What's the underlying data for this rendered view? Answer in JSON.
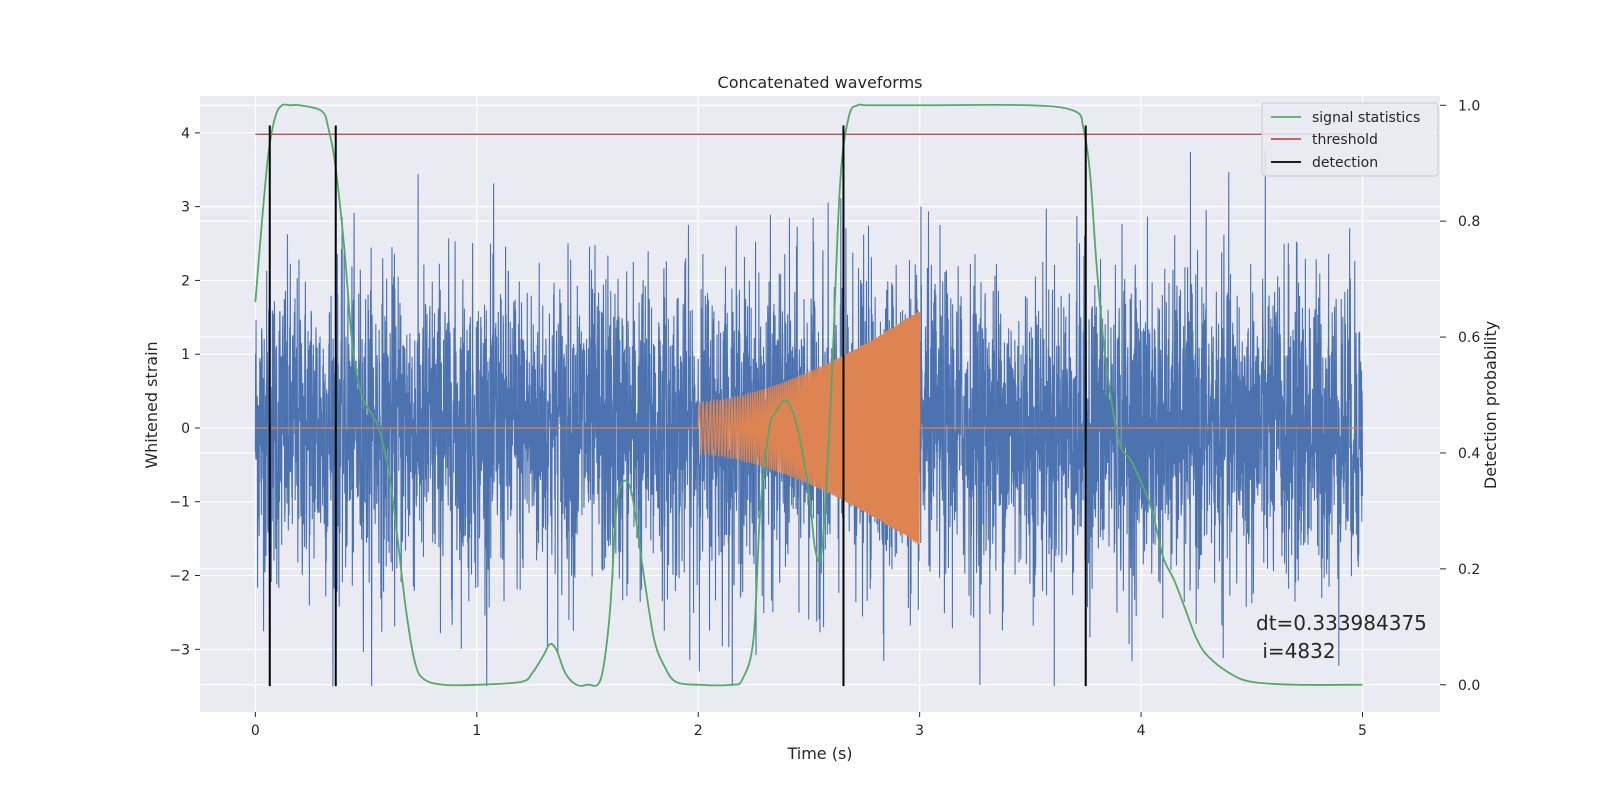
{
  "chart_data": {
    "type": "line",
    "title": "Concatenated waveforms",
    "xlabel": "Time (s)",
    "ylabel": "Whitened strain",
    "y2label": "Detection probability",
    "xlim": [
      -0.25,
      5.35
    ],
    "ylim": [
      -3.85,
      4.5
    ],
    "y2lim": [
      -0.047,
      1.016
    ],
    "xticks": [
      0,
      1,
      2,
      3,
      4,
      5
    ],
    "yticks": [
      -3,
      -2,
      -1,
      0,
      1,
      2,
      3,
      4
    ],
    "y2ticks": [
      0.0,
      0.2,
      0.4,
      0.6,
      0.8,
      1.0
    ],
    "xtick_labels": [
      "0",
      "1",
      "2",
      "3",
      "4",
      "5"
    ],
    "ytick_labels": [
      "−3",
      "−2",
      "−1",
      "0",
      "1",
      "2",
      "3",
      "4"
    ],
    "y2tick_labels": [
      "0.0",
      "0.2",
      "0.4",
      "0.6",
      "0.8",
      "1.0"
    ],
    "grid": true,
    "legend_position": "top-right",
    "series": [
      {
        "name": "",
        "axis": "left",
        "color": "#4c72b0",
        "kind": "noise",
        "x_range": [
          0,
          5
        ],
        "y_typical_range": [
          -2.2,
          2.2
        ],
        "y_extremes": [
          -3.5,
          4.1
        ]
      },
      {
        "name": "",
        "axis": "left",
        "color": "#dd8452",
        "kind": "chirp",
        "x": [
          0,
          2,
          2.0,
          2.5,
          3.0,
          3.0,
          5
        ],
        "amplitude": [
          0,
          0,
          0.35,
          0.9,
          1.6,
          0,
          0
        ]
      },
      {
        "name": "signal statistics",
        "axis": "right",
        "color": "#55a868",
        "x": [
          0,
          0.03,
          0.06,
          0.09,
          0.12,
          0.16,
          0.2,
          0.3,
          0.33,
          0.36,
          0.4,
          0.44,
          0.48,
          0.52,
          0.55,
          0.58,
          0.61,
          0.64,
          0.68,
          0.72,
          0.76,
          0.85,
          1.0,
          1.2,
          1.25,
          1.3,
          1.33,
          1.36,
          1.4,
          1.45,
          1.5,
          1.56,
          1.6,
          1.63,
          1.66,
          1.7,
          1.75,
          1.8,
          1.85,
          1.9,
          2.0,
          2.15,
          2.2,
          2.25,
          2.28,
          2.32,
          2.35,
          2.4,
          2.45,
          2.5,
          2.53,
          2.56,
          2.6,
          2.64,
          2.68,
          2.72,
          2.75,
          2.8,
          3.0,
          3.5,
          3.7,
          3.74,
          3.77,
          3.8,
          3.84,
          3.9,
          3.95,
          4.0,
          4.05,
          4.1,
          4.15,
          4.2,
          4.25,
          4.3,
          4.4,
          4.5,
          4.7,
          5.0
        ],
        "values": [
          0.66,
          0.8,
          0.92,
          0.98,
          1.0,
          1.0,
          1.0,
          0.99,
          0.96,
          0.9,
          0.76,
          0.58,
          0.5,
          0.47,
          0.45,
          0.41,
          0.35,
          0.26,
          0.13,
          0.04,
          0.01,
          0.0,
          0.0,
          0.005,
          0.02,
          0.05,
          0.07,
          0.06,
          0.02,
          0.0,
          0.0,
          0.01,
          0.12,
          0.3,
          0.35,
          0.33,
          0.2,
          0.08,
          0.03,
          0.005,
          0.0,
          0.0,
          0.01,
          0.08,
          0.3,
          0.44,
          0.47,
          0.49,
          0.44,
          0.33,
          0.23,
          0.24,
          0.5,
          0.86,
          0.98,
          1.0,
          1.0,
          1.0,
          1.0,
          1.0,
          0.99,
          0.96,
          0.88,
          0.72,
          0.56,
          0.42,
          0.39,
          0.35,
          0.3,
          0.22,
          0.18,
          0.13,
          0.08,
          0.05,
          0.02,
          0.005,
          0.0,
          0.0
        ]
      },
      {
        "name": "threshold",
        "axis": "right",
        "color": "#c44e52",
        "x": [
          0,
          5
        ],
        "values": [
          0.95,
          0.95
        ]
      },
      {
        "name": "detection",
        "axis": "left",
        "color": "#000000",
        "kind": "vlines",
        "x": [
          0.065,
          0.363,
          2.656,
          3.75
        ],
        "y_range": [
          -3.5,
          4.1
        ]
      }
    ],
    "annotations": [
      "dt=0.333984375",
      " i=4832"
    ]
  }
}
